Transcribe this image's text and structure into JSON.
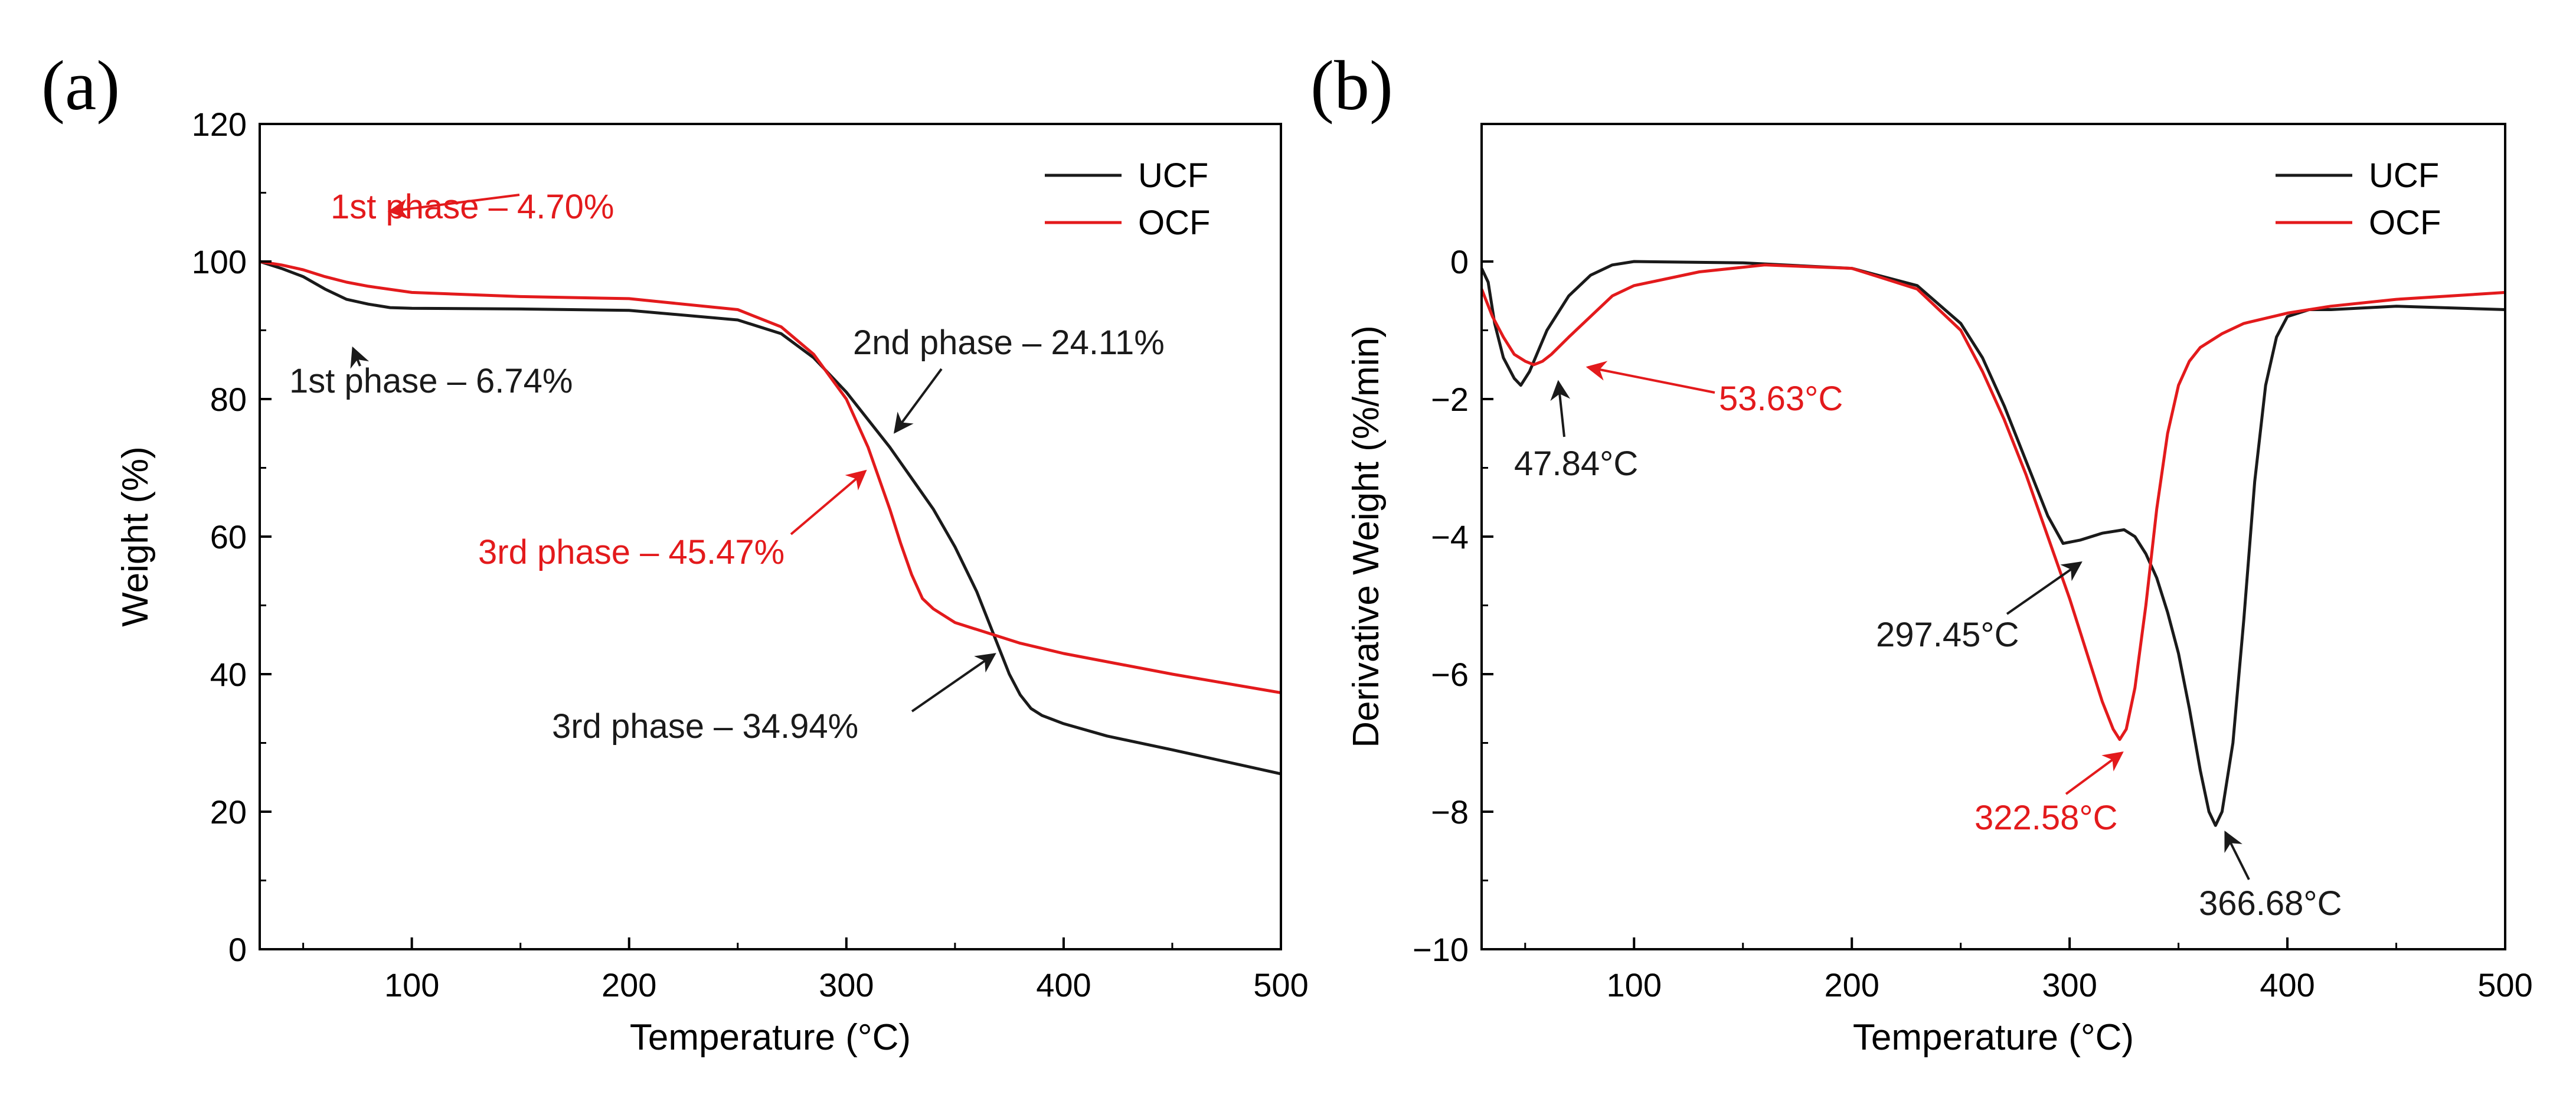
{
  "chart_data": [
    {
      "panel": "(a)",
      "type": "line",
      "xlabel": "Temperature (°C)",
      "ylabel": "Weight (%)",
      "xlim": [
        30,
        500
      ],
      "ylim": [
        0,
        120
      ],
      "xticks": [
        100,
        200,
        300,
        400,
        500
      ],
      "yticks": [
        0,
        20,
        40,
        60,
        80,
        100,
        120
      ],
      "grid": false,
      "legend": "top-right",
      "series": [
        {
          "name": "UCF",
          "color": "#1a1a1a",
          "x": [
            30,
            40,
            50,
            60,
            70,
            80,
            90,
            100,
            150,
            200,
            250,
            270,
            285,
            300,
            310,
            320,
            330,
            340,
            350,
            360,
            365,
            370,
            375,
            380,
            385,
            390,
            400,
            420,
            450,
            500
          ],
          "y": [
            100,
            99,
            97.8,
            96,
            94.5,
            93.8,
            93.3,
            93.2,
            93.1,
            92.9,
            91.5,
            89.5,
            86,
            81,
            77,
            73,
            68.5,
            64,
            58.5,
            52,
            48,
            44,
            40,
            37,
            35,
            34,
            32.8,
            31,
            29,
            25.5
          ]
        },
        {
          "name": "OCF",
          "color": "#e31a1c",
          "x": [
            30,
            40,
            50,
            60,
            70,
            80,
            100,
            150,
            200,
            250,
            270,
            285,
            300,
            310,
            320,
            325,
            330,
            335,
            340,
            350,
            360,
            380,
            400,
            450,
            500
          ],
          "y": [
            100,
            99.5,
            98.8,
            97.8,
            97,
            96.4,
            95.5,
            94.9,
            94.6,
            93,
            90.5,
            86.5,
            80,
            73,
            64,
            59,
            54.5,
            51,
            49.5,
            47.5,
            46.5,
            44.5,
            43,
            40,
            37.3
          ]
        }
      ],
      "annotations": [
        {
          "text": "1st phase – 4.70%",
          "color": "#e31a1c",
          "x": 55,
          "y": 98.5
        },
        {
          "text": "1st phase – 6.74%",
          "color": "#1a1a1a",
          "x": 64,
          "y": 94.8
        },
        {
          "text": "2nd phase – 24.11%",
          "color": "#1a1a1a",
          "x": 318,
          "y": 74.5
        },
        {
          "text": "3rd phase – 45.47%",
          "color": "#e31a1c",
          "x": 315,
          "y": 69
        },
        {
          "text": "3rd phase – 34.94%",
          "color": "#1a1a1a",
          "x": 368,
          "y": 43
        }
      ]
    },
    {
      "panel": "(b)",
      "type": "line",
      "xlabel": "Temperature (°C)",
      "ylabel": "Derivative Weight (%/min)",
      "xlim": [
        30,
        500
      ],
      "ylim": [
        -10,
        2
      ],
      "xticks": [
        100,
        200,
        300,
        400,
        500
      ],
      "yticks": [
        -10,
        -8,
        -6,
        -4,
        -2,
        0
      ],
      "grid": false,
      "legend": "top-right",
      "series": [
        {
          "name": "UCF",
          "color": "#1a1a1a",
          "x": [
            30,
            33,
            36,
            40,
            45,
            48,
            52,
            56,
            60,
            70,
            80,
            90,
            100,
            150,
            200,
            230,
            250,
            260,
            270,
            280,
            290,
            297,
            305,
            315,
            325,
            330,
            335,
            340,
            345,
            350,
            355,
            360,
            364,
            367,
            370,
            375,
            380,
            385,
            390,
            395,
            400,
            410,
            420,
            450,
            500
          ],
          "y": [
            -0.1,
            -0.3,
            -0.9,
            -1.4,
            -1.7,
            -1.8,
            -1.6,
            -1.3,
            -1.0,
            -0.5,
            -0.2,
            -0.05,
            0,
            -0.02,
            -0.1,
            -0.35,
            -0.9,
            -1.4,
            -2.1,
            -2.9,
            -3.7,
            -4.1,
            -4.05,
            -3.95,
            -3.9,
            -4.0,
            -4.25,
            -4.6,
            -5.1,
            -5.7,
            -6.5,
            -7.4,
            -8.0,
            -8.2,
            -8.0,
            -7.0,
            -5.2,
            -3.2,
            -1.8,
            -1.1,
            -0.8,
            -0.7,
            -0.7,
            -0.65,
            -0.7
          ]
        },
        {
          "name": "OCF",
          "color": "#e31a1c",
          "x": [
            30,
            35,
            40,
            45,
            50,
            54,
            58,
            62,
            70,
            80,
            90,
            100,
            130,
            160,
            200,
            230,
            250,
            260,
            270,
            280,
            290,
            300,
            305,
            310,
            315,
            320,
            323,
            326,
            330,
            335,
            340,
            345,
            350,
            355,
            360,
            370,
            380,
            400,
            420,
            450,
            500
          ],
          "y": [
            -0.4,
            -0.8,
            -1.1,
            -1.35,
            -1.45,
            -1.5,
            -1.45,
            -1.35,
            -1.1,
            -0.8,
            -0.5,
            -0.35,
            -0.15,
            -0.05,
            -0.1,
            -0.4,
            -1.0,
            -1.6,
            -2.3,
            -3.1,
            -4.0,
            -4.9,
            -5.4,
            -5.9,
            -6.4,
            -6.8,
            -6.95,
            -6.8,
            -6.2,
            -5.0,
            -3.6,
            -2.5,
            -1.8,
            -1.45,
            -1.25,
            -1.05,
            -0.9,
            -0.75,
            -0.65,
            -0.55,
            -0.45
          ]
        }
      ],
      "annotations": [
        {
          "text": "47.84°C",
          "color": "#1a1a1a",
          "x": 48,
          "y": -1.8
        },
        {
          "text": "53.63°C",
          "color": "#e31a1c",
          "x": 54,
          "y": -1.5
        },
        {
          "text": "297.45°C",
          "color": "#1a1a1a",
          "x": 297,
          "y": -4.1
        },
        {
          "text": "322.58°C",
          "color": "#e31a1c",
          "x": 323,
          "y": -6.95
        },
        {
          "text": "366.68°C",
          "color": "#1a1a1a",
          "x": 367,
          "y": -8.2
        }
      ]
    }
  ]
}
